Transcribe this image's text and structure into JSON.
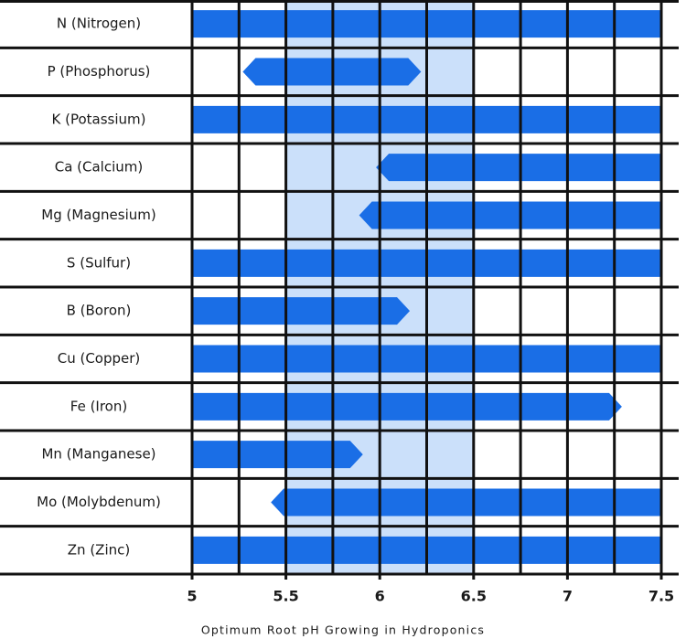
{
  "chart_data": {
    "type": "range-bar",
    "xlabel": "Optimum Root pH Growing in Hydroponics",
    "categories": [
      "N (Nitrogen)",
      "P (Phosphorus)",
      "K (Potassium)",
      "Ca (Calcium)",
      "Mg (Magnesium)",
      "S (Sulfur)",
      "B (Boron)",
      "Cu (Copper)",
      "Fe (Iron)",
      "Mn (Manganese)",
      "Mo (Molybdenum)",
      "Zn (Zinc)"
    ],
    "starts": [
      5,
      5.27,
      5,
      5.98,
      5.89,
      5,
      5,
      5,
      5,
      5,
      5.42,
      5
    ],
    "ends": [
      7.5,
      6.22,
      7.5,
      7.5,
      7.5,
      7.5,
      6.16,
      7.5,
      7.29,
      5.91,
      7.5,
      7.5
    ],
    "color": "#1a6ee6",
    "xlim": [
      5,
      7.5
    ],
    "xticks": [
      5,
      5.5,
      6,
      6.5,
      7,
      7.5
    ],
    "xminorticks": [
      5.25,
      5.75,
      6.25,
      6.75,
      7.25
    ],
    "highlight": [
      5.5,
      6.5
    ],
    "highlight_color": "#cbe0fa",
    "grid": true
  }
}
